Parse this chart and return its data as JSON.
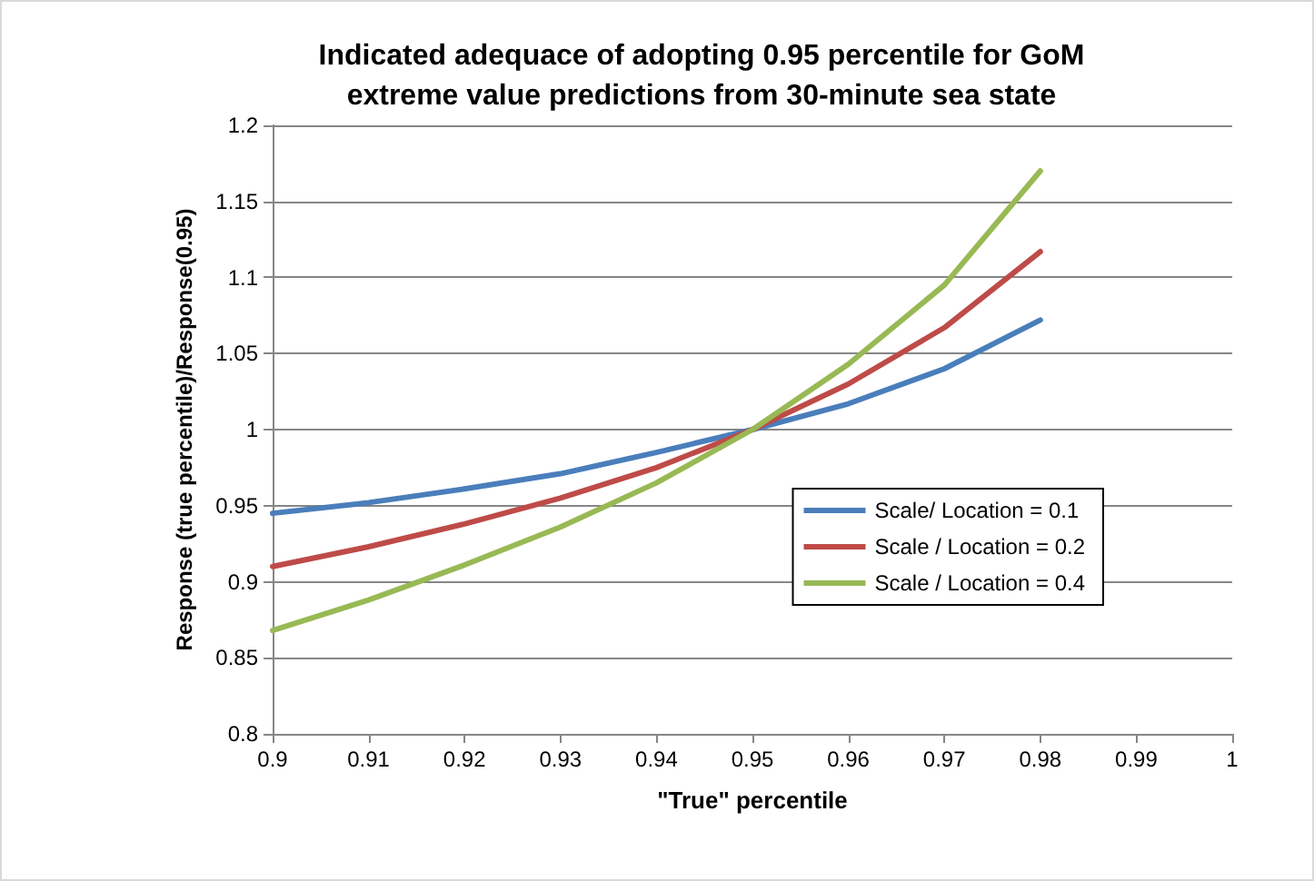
{
  "chart_data": {
    "type": "line",
    "title": "Indicated adequace of adopting 0.95 percentile for GoM\nextreme value predictions from 30-minute sea state",
    "xlabel": "\"True\" percentile",
    "ylabel": "Response (true percentile)/Response(0.95)",
    "x": [
      0.9,
      0.91,
      0.92,
      0.93,
      0.94,
      0.95,
      0.96,
      0.97,
      0.98
    ],
    "series": [
      {
        "name": "Scale/ Location = 0.1",
        "color": "#4a7ebb",
        "values": [
          0.945,
          0.952,
          0.961,
          0.971,
          0.985,
          1.0,
          1.017,
          1.04,
          1.072
        ]
      },
      {
        "name": "Scale / Location = 0.2",
        "color": "#be4b48",
        "values": [
          0.91,
          0.923,
          0.938,
          0.955,
          0.975,
          1.0,
          1.03,
          1.067,
          1.117
        ]
      },
      {
        "name": "Scale / Location = 0.4",
        "color": "#98b954",
        "values": [
          0.868,
          0.888,
          0.911,
          0.936,
          0.965,
          1.0,
          1.043,
          1.095,
          1.17
        ]
      }
    ],
    "xlim": [
      0.9,
      1
    ],
    "xticks": [
      0.9,
      0.91,
      0.92,
      0.93,
      0.94,
      0.95,
      0.96,
      0.97,
      0.98,
      0.99,
      1
    ],
    "ylim": [
      0.8,
      1.2
    ],
    "yticks": [
      0.8,
      0.85,
      0.9,
      0.95,
      1,
      1.05,
      1.1,
      1.15,
      1.2
    ],
    "grid": "y",
    "legend": "bottom right",
    "marker": "none",
    "line_style": "solid"
  }
}
